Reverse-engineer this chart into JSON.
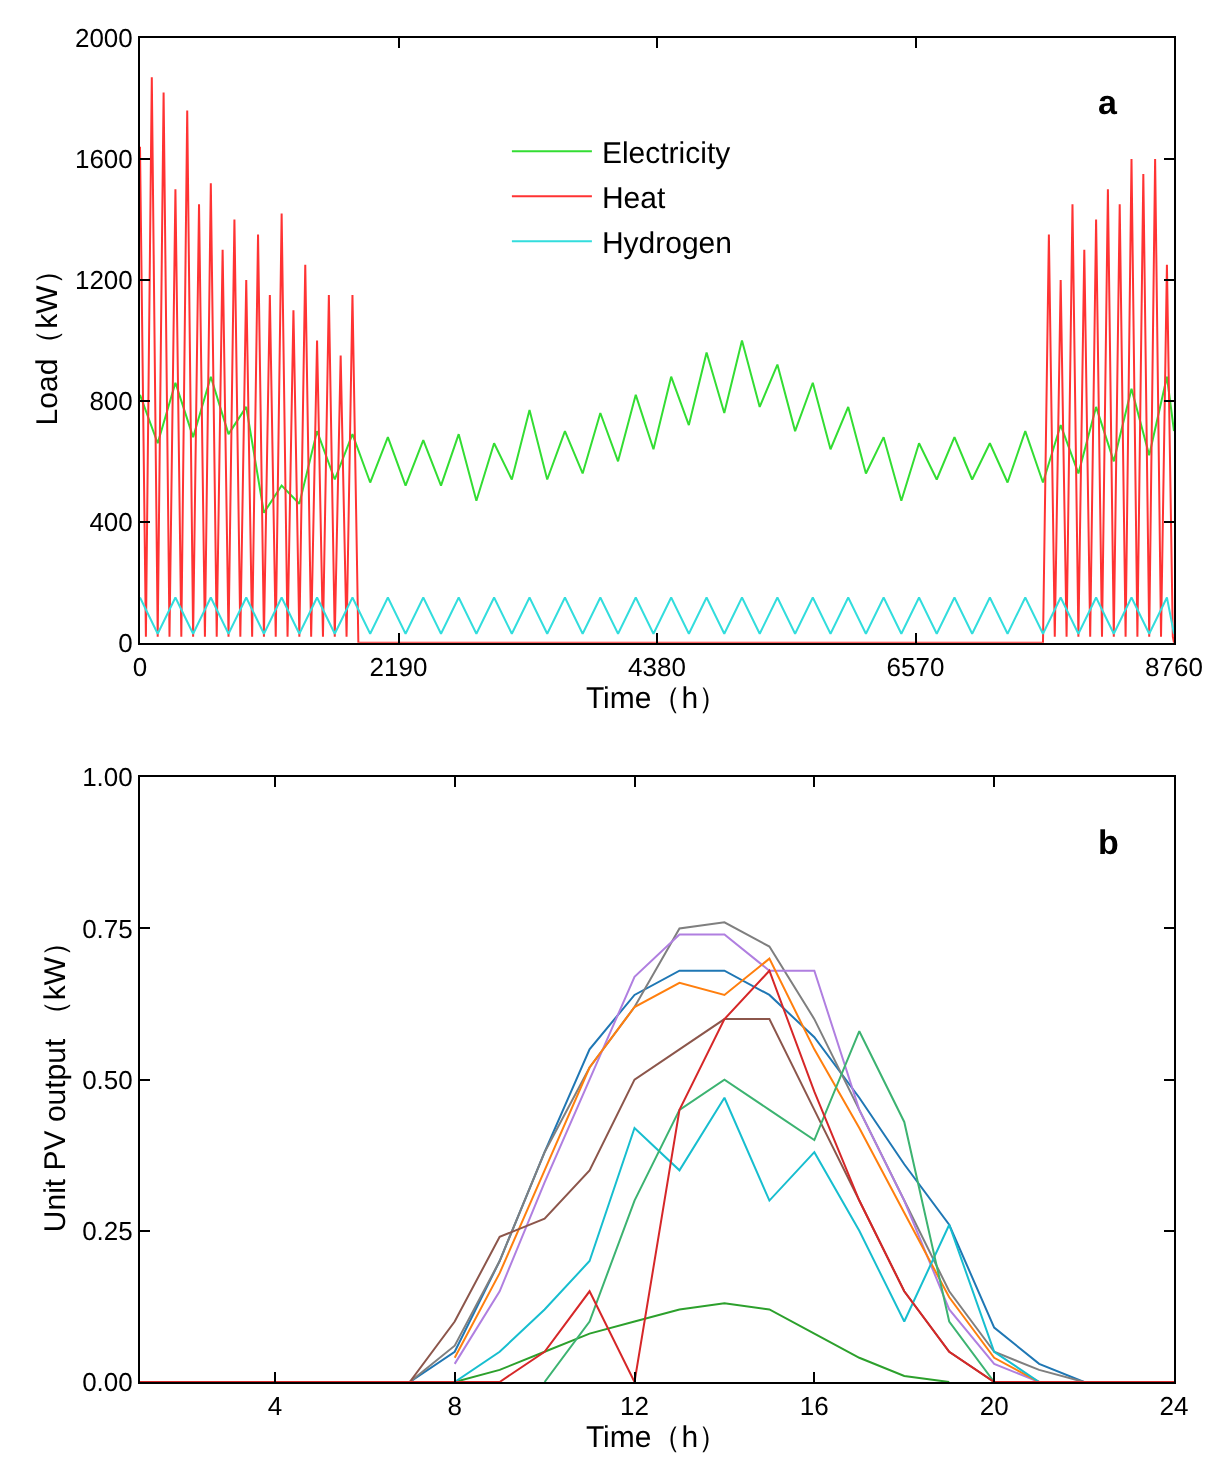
{
  "chart_data": [
    {
      "type": "line",
      "xlabel": "Time（h）",
      "ylabel": "Load（kW）",
      "xlim": [
        0,
        8760
      ],
      "ylim": [
        0,
        2000
      ],
      "xticks": [
        0,
        2190,
        4380,
        6570,
        8760
      ],
      "yticks": [
        0,
        400,
        800,
        1200,
        1600,
        2000
      ],
      "legend": "top",
      "annotations": [
        "a"
      ],
      "series": [
        {
          "name": "Electricity",
          "color": "#33dd33",
          "x": [
            0,
            150,
            300,
            450,
            600,
            750,
            900,
            1050,
            1200,
            1350,
            1500,
            1650,
            1800,
            1950,
            2100,
            2250,
            2400,
            2550,
            2700,
            2850,
            3000,
            3150,
            3300,
            3450,
            3600,
            3750,
            3900,
            4050,
            4200,
            4350,
            4500,
            4650,
            4800,
            4950,
            5100,
            5250,
            5400,
            5550,
            5700,
            5850,
            6000,
            6150,
            6300,
            6450,
            6600,
            6750,
            6900,
            7050,
            7200,
            7350,
            7500,
            7650,
            7800,
            7950,
            8100,
            8250,
            8400,
            8550,
            8700,
            8760
          ],
          "values": [
            820,
            660,
            860,
            680,
            880,
            690,
            780,
            430,
            520,
            460,
            700,
            540,
            690,
            530,
            680,
            520,
            670,
            520,
            690,
            470,
            660,
            540,
            770,
            540,
            700,
            560,
            760,
            600,
            820,
            640,
            880,
            720,
            960,
            760,
            1000,
            780,
            920,
            700,
            860,
            640,
            780,
            560,
            680,
            470,
            660,
            540,
            680,
            540,
            660,
            530,
            700,
            530,
            720,
            560,
            780,
            600,
            840,
            620,
            880,
            700
          ]
        },
        {
          "name": "Heat",
          "color": "#ff3333",
          "x": [
            0,
            50,
            100,
            150,
            200,
            250,
            300,
            350,
            400,
            450,
            500,
            550,
            600,
            650,
            700,
            750,
            800,
            850,
            900,
            950,
            1000,
            1050,
            1100,
            1150,
            1200,
            1250,
            1300,
            1350,
            1400,
            1450,
            1500,
            1550,
            1600,
            1650,
            1700,
            1750,
            1800,
            1850,
            7650,
            7700,
            7750,
            7800,
            7850,
            7900,
            7950,
            8000,
            8050,
            8100,
            8150,
            8200,
            8250,
            8300,
            8350,
            8400,
            8450,
            8500,
            8550,
            8600,
            8650,
            8700,
            8750,
            8760
          ],
          "values": [
            1640,
            20,
            1870,
            20,
            1820,
            20,
            1500,
            20,
            1760,
            20,
            1450,
            20,
            1520,
            20,
            1300,
            20,
            1400,
            20,
            1200,
            20,
            1350,
            20,
            1150,
            20,
            1420,
            20,
            1100,
            20,
            1250,
            20,
            1000,
            20,
            1150,
            20,
            950,
            20,
            1150,
            0,
            0,
            1350,
            20,
            1200,
            20,
            1450,
            20,
            1300,
            20,
            1400,
            20,
            1500,
            20,
            1450,
            20,
            1600,
            20,
            1550,
            20,
            1600,
            20,
            1250,
            20,
            0
          ]
        },
        {
          "name": "Hydrogen",
          "color": "#33dddd",
          "x": [
            0,
            150,
            300,
            450,
            600,
            750,
            900,
            1050,
            1200,
            1350,
            1500,
            1650,
            1800,
            1950,
            2100,
            2250,
            2400,
            2550,
            2700,
            2850,
            3000,
            3150,
            3300,
            3450,
            3600,
            3750,
            3900,
            4050,
            4200,
            4350,
            4500,
            4650,
            4800,
            4950,
            5100,
            5250,
            5400,
            5550,
            5700,
            5850,
            6000,
            6150,
            6300,
            6450,
            6600,
            6750,
            6900,
            7050,
            7200,
            7350,
            7500,
            7650,
            7800,
            7950,
            8100,
            8250,
            8400,
            8550,
            8700,
            8760
          ],
          "values": [
            150,
            30,
            150,
            30,
            150,
            30,
            150,
            30,
            150,
            30,
            150,
            30,
            150,
            30,
            150,
            30,
            150,
            30,
            150,
            30,
            150,
            30,
            150,
            30,
            150,
            30,
            150,
            30,
            150,
            30,
            150,
            30,
            150,
            30,
            150,
            30,
            150,
            30,
            150,
            30,
            150,
            30,
            150,
            30,
            150,
            30,
            150,
            30,
            150,
            30,
            150,
            30,
            150,
            30,
            150,
            30,
            150,
            30,
            150,
            30
          ]
        }
      ]
    },
    {
      "type": "line",
      "xlabel": "Time（h）",
      "ylabel": "Unit PV output （kW）",
      "xlim": [
        1,
        24
      ],
      "ylim": [
        0,
        1
      ],
      "xticks": [
        4,
        8,
        12,
        16,
        20,
        24
      ],
      "yticks": [
        {
          "value": 0,
          "label": "0.00"
        },
        {
          "value": 0.25,
          "label": "0.25"
        },
        {
          "value": 0.5,
          "label": "0.50"
        },
        {
          "value": 0.75,
          "label": "0.75"
        },
        {
          "value": 1,
          "label": "1.00"
        }
      ],
      "annotations": [
        "b"
      ],
      "x": [
        1,
        2,
        3,
        4,
        5,
        6,
        7,
        8,
        9,
        10,
        11,
        12,
        13,
        14,
        15,
        16,
        17,
        18,
        19,
        20,
        21,
        22,
        23,
        24
      ],
      "series": [
        {
          "color": "#1f77b4",
          "values": [
            null,
            null,
            null,
            null,
            null,
            null,
            0,
            0.05,
            0.2,
            0.38,
            0.55,
            0.64,
            0.68,
            0.68,
            0.64,
            0.57,
            0.47,
            0.36,
            0.26,
            0.09,
            0.03,
            0,
            null,
            null
          ]
        },
        {
          "color": "#7f7f7f",
          "values": [
            null,
            null,
            null,
            null,
            null,
            null,
            0,
            0.06,
            0.2,
            0.38,
            0.52,
            0.62,
            0.75,
            0.76,
            0.72,
            0.6,
            0.45,
            0.3,
            0.15,
            0.05,
            0.02,
            0,
            null,
            null
          ]
        },
        {
          "color": "#b07fe0",
          "values": [
            null,
            null,
            null,
            null,
            null,
            null,
            null,
            0.03,
            0.15,
            0.33,
            0.5,
            0.67,
            0.74,
            0.74,
            0.68,
            0.68,
            0.45,
            0.3,
            0.12,
            0.03,
            0,
            null,
            null,
            null
          ]
        },
        {
          "color": "#ff7f0e",
          "values": [
            null,
            null,
            null,
            null,
            null,
            null,
            null,
            0.04,
            0.18,
            0.35,
            0.52,
            0.62,
            0.66,
            0.64,
            0.7,
            0.55,
            0.42,
            0.28,
            0.14,
            0.04,
            0,
            null,
            null,
            null
          ]
        },
        {
          "color": "#8c564b",
          "values": [
            null,
            null,
            null,
            null,
            null,
            null,
            0,
            0.1,
            0.24,
            0.27,
            0.35,
            0.5,
            0.55,
            0.6,
            0.6,
            0.45,
            0.3,
            0.15,
            0.05,
            0,
            null,
            null,
            null,
            null
          ]
        },
        {
          "color": "#2ca02c",
          "values": [
            null,
            null,
            null,
            null,
            null,
            null,
            null,
            0,
            0.02,
            0.05,
            0.08,
            0.1,
            0.12,
            0.13,
            0.12,
            0.08,
            0.04,
            0.01,
            0,
            null,
            null,
            null,
            null,
            null
          ]
        },
        {
          "color": "#17becf",
          "values": [
            null,
            null,
            null,
            null,
            null,
            null,
            null,
            0,
            0.05,
            0.12,
            0.2,
            0.42,
            0.35,
            0.47,
            0.3,
            0.38,
            0.25,
            0.1,
            0.26,
            0.05,
            0,
            null,
            null,
            null
          ]
        },
        {
          "color": "#3cb371",
          "values": [
            null,
            null,
            null,
            null,
            null,
            null,
            null,
            null,
            null,
            0,
            0.1,
            0.3,
            0.45,
            0.5,
            0.45,
            0.4,
            0.58,
            0.43,
            0.1,
            0,
            null,
            null,
            null,
            null
          ]
        },
        {
          "color": "#d62728",
          "values": [
            0,
            0,
            0,
            0,
            0,
            0,
            0,
            0,
            0,
            0.05,
            0.15,
            0,
            0.45,
            0.6,
            0.68,
            0.48,
            0.3,
            0.15,
            0.05,
            0,
            0,
            0,
            0,
            0
          ]
        }
      ]
    }
  ]
}
